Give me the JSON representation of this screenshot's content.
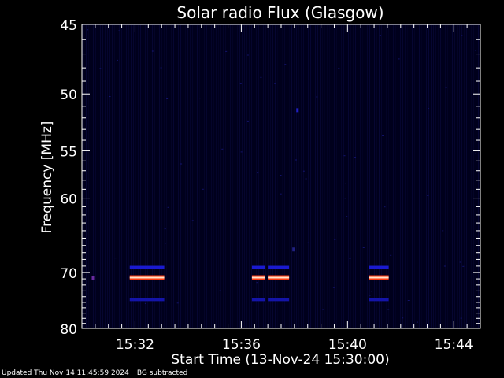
{
  "chart_data": {
    "type": "heatmap",
    "title": "Solar radio Flux (Glasgow)",
    "xlabel": "Start Time (13-Nov-24 15:30:00)",
    "ylabel": "Frequency [MHz]",
    "x_tick_labels": [
      "15:32",
      "15:36",
      "15:40",
      "15:44"
    ],
    "x_tick_minutes": [
      2,
      6,
      10,
      14
    ],
    "xlim_minutes": [
      0,
      15
    ],
    "y_tick_labels": [
      "45",
      "50",
      "55",
      "60",
      "70",
      "80"
    ],
    "y_tick_values": [
      45,
      50,
      55,
      60,
      70,
      80
    ],
    "ylim": [
      45,
      80
    ],
    "y_scale": "reciprocal",
    "background_subtracted": true,
    "bands": [
      {
        "freq": 69.2,
        "intensity": "low",
        "color": "#1a1ad0",
        "segments": [
          [
            1.8,
            3.1
          ],
          [
            6.4,
            6.9
          ],
          [
            7.0,
            7.8
          ],
          [
            10.8,
            11.55
          ]
        ]
      },
      {
        "freq": 70.8,
        "intensity": "high",
        "color": "#ff4020",
        "segments": [
          [
            1.8,
            3.1
          ],
          [
            6.4,
            6.9
          ],
          [
            7.0,
            7.8
          ],
          [
            10.8,
            11.55
          ]
        ]
      },
      {
        "freq": 74.5,
        "intensity": "low",
        "color": "#1414a8",
        "segments": [
          [
            1.8,
            3.1
          ],
          [
            6.4,
            6.9
          ],
          [
            7.0,
            7.8
          ],
          [
            10.8,
            11.55
          ]
        ]
      }
    ],
    "spots": [
      {
        "minute": 0.4,
        "freq": 70.8,
        "color": "#6a2aa0"
      },
      {
        "minute": 8.1,
        "freq": 51.3,
        "color": "#2020c0"
      },
      {
        "minute": 7.95,
        "freq": 66.5,
        "color": "#202080"
      }
    ]
  },
  "footer": {
    "updated": "Updated Thu Nov 14 11:45:59 2024",
    "note": "BG subtracted"
  }
}
